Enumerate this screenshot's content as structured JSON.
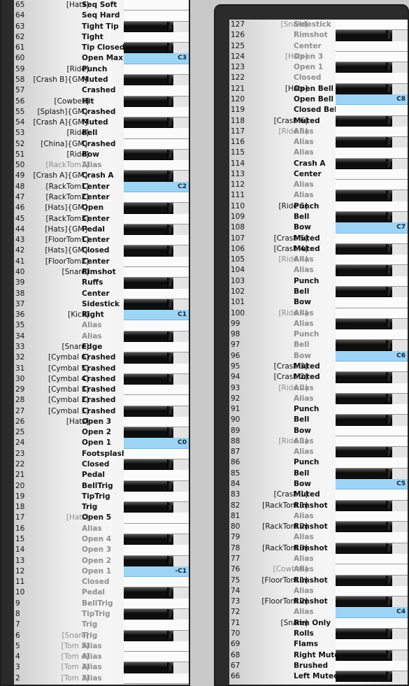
{
  "left_panel": {
    "rows": [
      {
        "num": "65",
        "group": "[Hats]",
        "name": "Seq Soft",
        "key": "w"
      },
      {
        "num": "64",
        "group": "",
        "name": "Seq Hard",
        "key": "w"
      },
      {
        "num": "63",
        "group": "",
        "name": "Tight Tip",
        "key": "b"
      },
      {
        "num": "62",
        "group": "",
        "name": "Tight",
        "key": "w"
      },
      {
        "num": "61",
        "group": "",
        "name": "Tip Closed",
        "key": "b"
      },
      {
        "num": "60",
        "group": "",
        "name": "Open Max",
        "key": "s",
        "note": "C3"
      },
      {
        "num": "59",
        "group": "[Ride]",
        "name": "Punch",
        "key": "w"
      },
      {
        "num": "58",
        "group": "[Crash B]{GM}",
        "name": "Muted",
        "key": "b"
      },
      {
        "num": "57",
        "group": "",
        "name": "Crashed",
        "key": "w"
      },
      {
        "num": "56",
        "group": "[Cowbell]",
        "name": "Hit",
        "key": "b"
      },
      {
        "num": "55",
        "group": "[Splash]{GM}",
        "name": "Crashed",
        "key": "w"
      },
      {
        "num": "54",
        "group": "[Crash A]{GM}",
        "name": "Muted",
        "key": "b"
      },
      {
        "num": "53",
        "group": "[Ride]",
        "name": "Bell",
        "key": "w"
      },
      {
        "num": "52",
        "group": "[China]{GM}",
        "name": "Crashed",
        "key": "w"
      },
      {
        "num": "51",
        "group": "[Ride]",
        "name": "Bow",
        "key": "b"
      },
      {
        "num": "50",
        "group": "[RackTom1]",
        "name": "Alias",
        "key": "w",
        "gray": true
      },
      {
        "num": "49",
        "group": "[Crash A]{GM}",
        "name": "Crash A",
        "key": "b"
      },
      {
        "num": "48",
        "group": "[RackTom1]",
        "name": "Center",
        "key": "s",
        "note": "C2"
      },
      {
        "num": "47",
        "group": "[RackTom2]",
        "name": "Center",
        "key": "w"
      },
      {
        "num": "46",
        "group": "[Hats]{GM}",
        "name": "Open",
        "key": "b"
      },
      {
        "num": "45",
        "group": "[RackTom3]",
        "name": "Center",
        "key": "w"
      },
      {
        "num": "44",
        "group": "[Hats]{GM}",
        "name": "Pedal",
        "key": "b"
      },
      {
        "num": "43",
        "group": "[FloorTom1]",
        "name": "Center",
        "key": "w"
      },
      {
        "num": "42",
        "group": "[Hats]{GM}",
        "name": "Closed",
        "key": "b"
      },
      {
        "num": "41",
        "group": "[FloorTom2]",
        "name": "Center",
        "key": "w"
      },
      {
        "num": "40",
        "group": "[Snare]",
        "name": "Rimshot",
        "key": "w"
      },
      {
        "num": "39",
        "group": "",
        "name": "Ruffs",
        "key": "b"
      },
      {
        "num": "38",
        "group": "",
        "name": "Center",
        "key": "w"
      },
      {
        "num": "37",
        "group": "",
        "name": "Sidestick",
        "key": "b"
      },
      {
        "num": "36",
        "group": "[Kick]",
        "name": "Right",
        "key": "s",
        "note": "C1"
      },
      {
        "num": "35",
        "group": "",
        "name": "Alias",
        "key": "w",
        "gray": true
      },
      {
        "num": "34",
        "group": "",
        "name": "Alias",
        "key": "b",
        "gray": true
      },
      {
        "num": "33",
        "group": "[Snare]",
        "name": "Edge",
        "key": "w"
      },
      {
        "num": "32",
        "group": "[Cymbal 6]",
        "name": "Crashed",
        "key": "b"
      },
      {
        "num": "31",
        "group": "[Cymbal 5]",
        "name": "Crashed",
        "key": "w"
      },
      {
        "num": "30",
        "group": "[Cymbal 4]",
        "name": "Crashed",
        "key": "b"
      },
      {
        "num": "29",
        "group": "[Cymbal 3]",
        "name": "Crashed",
        "key": "w"
      },
      {
        "num": "28",
        "group": "[Cymbal 2]",
        "name": "Crashed",
        "key": "w"
      },
      {
        "num": "27",
        "group": "[Cymbal 1]",
        "name": "Crashed",
        "key": "b"
      },
      {
        "num": "26",
        "group": "[Hats]",
        "name": "Open 3",
        "key": "w"
      },
      {
        "num": "25",
        "group": "",
        "name": "Open 2",
        "key": "b"
      },
      {
        "num": "24",
        "group": "",
        "name": "Open 1",
        "key": "s",
        "note": "C0"
      },
      {
        "num": "23",
        "group": "",
        "name": "Footsplash",
        "key": "w"
      },
      {
        "num": "22",
        "group": "",
        "name": "Closed",
        "key": "b"
      },
      {
        "num": "21",
        "group": "",
        "name": "Pedal",
        "key": "w"
      },
      {
        "num": "20",
        "group": "",
        "name": "BellTrig",
        "key": "b"
      },
      {
        "num": "19",
        "group": "",
        "name": "TipTrig",
        "key": "w"
      },
      {
        "num": "18",
        "group": "",
        "name": "Trig",
        "key": "b"
      },
      {
        "num": "17",
        "group": "[Hats]",
        "name": "Open 5",
        "key": "w",
        "gray_group": true
      },
      {
        "num": "16",
        "group": "",
        "name": "Alias",
        "key": "w",
        "gray": true
      },
      {
        "num": "15",
        "group": "",
        "name": "Open 4",
        "key": "b",
        "gray": true
      },
      {
        "num": "14",
        "group": "",
        "name": "Open 3",
        "key": "w",
        "gray": true
      },
      {
        "num": "13",
        "group": "",
        "name": "Open 2",
        "key": "b",
        "gray": true
      },
      {
        "num": "12",
        "group": "",
        "name": "Open 1",
        "key": "s",
        "note": "-C1",
        "gray": true
      },
      {
        "num": "11",
        "group": "",
        "name": "Closed",
        "key": "w",
        "gray": true
      },
      {
        "num": "10",
        "group": "",
        "name": "Pedal",
        "key": "b",
        "gray": true
      },
      {
        "num": "9",
        "group": "",
        "name": "BellTrig",
        "key": "w",
        "gray": true
      },
      {
        "num": "8",
        "group": "",
        "name": "TipTrig",
        "key": "b",
        "gray": true
      },
      {
        "num": "7",
        "group": "",
        "name": "Trig",
        "key": "w",
        "gray": true
      },
      {
        "num": "6",
        "group": "[Snare]",
        "name": "Trig",
        "key": "b",
        "gray": true
      },
      {
        "num": "5",
        "group": "[Tom 5]",
        "name": "Alias",
        "key": "w",
        "gray": true
      },
      {
        "num": "4",
        "group": "[Tom 4]",
        "name": "Alias",
        "key": "w",
        "gray": true
      },
      {
        "num": "3",
        "group": "[Tom 3]",
        "name": "Alias",
        "key": "b",
        "gray": true
      },
      {
        "num": "2",
        "group": "[Tom 2]",
        "name": "Alias",
        "key": "w",
        "gray": true
      }
    ]
  },
  "right_panel": {
    "rows": [
      {
        "num": "127",
        "group": "[Snare]",
        "name": "Sidestick",
        "key": "w",
        "gray": true
      },
      {
        "num": "126",
        "group": "",
        "name": "Rimshot",
        "key": "b",
        "gray": true
      },
      {
        "num": "125",
        "group": "",
        "name": "Center",
        "key": "w",
        "gray": true
      },
      {
        "num": "124",
        "group": "[Hats]",
        "name": "Open 3",
        "key": "w",
        "gray": true
      },
      {
        "num": "123",
        "group": "",
        "name": "Open 1",
        "key": "b",
        "gray": true
      },
      {
        "num": "122",
        "group": "",
        "name": "Closed",
        "key": "w",
        "gray": true
      },
      {
        "num": "121",
        "group": "[Hats]",
        "name": "Open Bell 2",
        "key": "b"
      },
      {
        "num": "120",
        "group": "",
        "name": "Open Bell 1",
        "key": "s",
        "note": "C8"
      },
      {
        "num": "119",
        "group": "",
        "name": "Closed Bell",
        "key": "w"
      },
      {
        "num": "118",
        "group": "[Crash 6]",
        "name": "Muted",
        "key": "b"
      },
      {
        "num": "117",
        "group": "[Ride 5]",
        "name": "Alias",
        "key": "w",
        "gray": true
      },
      {
        "num": "116",
        "group": "",
        "name": "Alias",
        "key": "b",
        "gray": true
      },
      {
        "num": "115",
        "group": "",
        "name": "Alias",
        "key": "w",
        "gray": true
      },
      {
        "num": "114",
        "group": "",
        "name": "Crash A",
        "key": "b"
      },
      {
        "num": "113",
        "group": "",
        "name": "Center",
        "key": "w"
      },
      {
        "num": "112",
        "group": "",
        "name": "Alias",
        "key": "w",
        "gray": true
      },
      {
        "num": "111",
        "group": "",
        "name": "Alias",
        "key": "b",
        "gray": true
      },
      {
        "num": "110",
        "group": "[Ride 5]",
        "name": "Punch",
        "key": "w"
      },
      {
        "num": "109",
        "group": "",
        "name": "Bell",
        "key": "b"
      },
      {
        "num": "108",
        "group": "",
        "name": "Bow",
        "key": "s",
        "note": "C7"
      },
      {
        "num": "107",
        "group": "[Crash 5]",
        "name": "Muted",
        "key": "w"
      },
      {
        "num": "106",
        "group": "[Crash 4]",
        "name": "Muted",
        "key": "b"
      },
      {
        "num": "105",
        "group": "[Ride 4]",
        "name": "Alias",
        "key": "w",
        "gray": true
      },
      {
        "num": "104",
        "group": "",
        "name": "Alias",
        "key": "b",
        "gray": true
      },
      {
        "num": "103",
        "group": "",
        "name": "Punch",
        "key": "w"
      },
      {
        "num": "102",
        "group": "",
        "name": "Bell",
        "key": "b"
      },
      {
        "num": "101",
        "group": "",
        "name": "Bow",
        "key": "w"
      },
      {
        "num": "100",
        "group": "[Ride 4]",
        "name": "Alias",
        "key": "w",
        "gray": true
      },
      {
        "num": "99",
        "group": "",
        "name": "Alias",
        "key": "b",
        "gray": true
      },
      {
        "num": "98",
        "group": "",
        "name": "Punch",
        "key": "w",
        "gray": true
      },
      {
        "num": "97",
        "group": "",
        "name": "Bell",
        "key": "b",
        "gray": true
      },
      {
        "num": "96",
        "group": "",
        "name": "Bow",
        "key": "s",
        "note": "C6",
        "gray": true
      },
      {
        "num": "95",
        "group": "[Crash 3]",
        "name": "Muted",
        "key": "w"
      },
      {
        "num": "94",
        "group": "[Crash 2]",
        "name": "Muted",
        "key": "b"
      },
      {
        "num": "93",
        "group": "[Ride 2]",
        "name": "Alias",
        "key": "w",
        "gray": true
      },
      {
        "num": "92",
        "group": "",
        "name": "Alias",
        "key": "b",
        "gray": true
      },
      {
        "num": "91",
        "group": "",
        "name": "Punch",
        "key": "w"
      },
      {
        "num": "90",
        "group": "",
        "name": "Bell",
        "key": "b"
      },
      {
        "num": "89",
        "group": "",
        "name": "Bow",
        "key": "w"
      },
      {
        "num": "88",
        "group": "[Ride 1]",
        "name": "Alias",
        "key": "w",
        "gray": true
      },
      {
        "num": "87",
        "group": "",
        "name": "Alias",
        "key": "b",
        "gray": true
      },
      {
        "num": "86",
        "group": "",
        "name": "Punch",
        "key": "w"
      },
      {
        "num": "85",
        "group": "",
        "name": "Bell",
        "key": "b"
      },
      {
        "num": "84",
        "group": "",
        "name": "Bow",
        "key": "s",
        "note": "C5"
      },
      {
        "num": "83",
        "group": "[Crash 1]",
        "name": "Muted",
        "key": "w"
      },
      {
        "num": "82",
        "group": "[RackTom 1]",
        "name": "Rimshot",
        "key": "b"
      },
      {
        "num": "81",
        "group": "",
        "name": "Alias",
        "key": "w",
        "gray": true
      },
      {
        "num": "80",
        "group": "[RackTom 2]",
        "name": "Rimshot",
        "key": "b"
      },
      {
        "num": "79",
        "group": "",
        "name": "Alias",
        "key": "w",
        "gray": true
      },
      {
        "num": "78",
        "group": "[RackTom 3]",
        "name": "Rimshot",
        "key": "b"
      },
      {
        "num": "77",
        "group": "",
        "name": "Alias",
        "key": "w",
        "gray": true
      },
      {
        "num": "76",
        "group": "[Cowbell]",
        "name": "Alias",
        "key": "w",
        "gray": true
      },
      {
        "num": "75",
        "group": "[FloorTom 1]",
        "name": "Rimshot",
        "key": "b"
      },
      {
        "num": "74",
        "group": "",
        "name": "Alias",
        "key": "w",
        "gray": true
      },
      {
        "num": "73",
        "group": "[FloorTom 2]",
        "name": "Rimshot",
        "key": "b"
      },
      {
        "num": "72",
        "group": "",
        "name": "Alias",
        "key": "s",
        "note": "C4",
        "gray": true
      },
      {
        "num": "71",
        "group": "[Snare]",
        "name": "Rim Only",
        "key": "w"
      },
      {
        "num": "70",
        "group": "",
        "name": "Rolls",
        "key": "b"
      },
      {
        "num": "69",
        "group": "",
        "name": "Flams",
        "key": "w"
      },
      {
        "num": "68",
        "group": "",
        "name": "Right Muted",
        "key": "b"
      },
      {
        "num": "67",
        "group": "",
        "name": "Brushed",
        "key": "w"
      },
      {
        "num": "66",
        "group": "",
        "name": "Left Muted",
        "key": "b"
      }
    ]
  },
  "colors": {
    "selected_key": "#9dd4f5",
    "gray_text": "#8e8e8e",
    "panel_frame": "#2b2b2b"
  }
}
